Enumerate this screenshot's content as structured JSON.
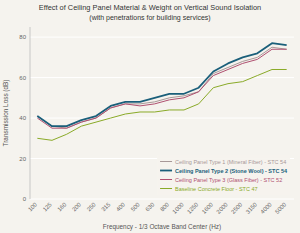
{
  "chart_data": {
    "type": "line",
    "title": "Effect of Ceiling Panel Material & Weight on Vertical Sound Isolation",
    "subtitle": "(with penetrations for building services)",
    "x_label": "Frequency - 1/3 Octave Band Center (Hz)",
    "y_label": "Transmission Loss (dB)",
    "categories": [
      "100",
      "125",
      "160",
      "200",
      "250",
      "315",
      "400",
      "500",
      "630",
      "800",
      "1000",
      "1250",
      "1600",
      "2000",
      "2500",
      "3150",
      "4000",
      "5000"
    ],
    "series": [
      {
        "name": "Ceiling Panel Type 1 (Mineral Fiber) - STC 54",
        "color": "#a89898",
        "values": [
          41,
          36,
          35,
          38,
          40,
          45,
          47,
          47,
          48,
          50,
          51,
          53,
          62,
          65,
          68,
          70,
          75,
          74
        ]
      },
      {
        "name": "Ceiling Panel Type 2 (Stone Wool) - STC 54",
        "color": "#1a5f7a",
        "values": [
          41,
          36,
          36,
          39,
          41,
          46,
          48,
          48,
          50,
          52,
          52,
          55,
          63,
          67,
          70,
          72,
          77,
          76
        ]
      },
      {
        "name": "Ceiling Panel Type 3 (Glass Fiber) - STC 52",
        "color": "#b05070",
        "values": [
          40,
          35,
          35,
          38,
          40,
          45,
          47,
          46,
          47,
          49,
          50,
          53,
          61,
          64,
          67,
          69,
          74,
          74
        ]
      },
      {
        "name": "Baseline Concrete Floor - STC 47",
        "color": "#8aaa28",
        "values": [
          30,
          29,
          32,
          36,
          38,
          40,
          42,
          43,
          43,
          44,
          44,
          47,
          55,
          57,
          58,
          61,
          64,
          64
        ]
      }
    ],
    "ylim": [
      0,
      85
    ],
    "yticks": [
      0,
      20,
      40,
      60,
      80
    ],
    "grid": true,
    "legend": "lower right"
  }
}
